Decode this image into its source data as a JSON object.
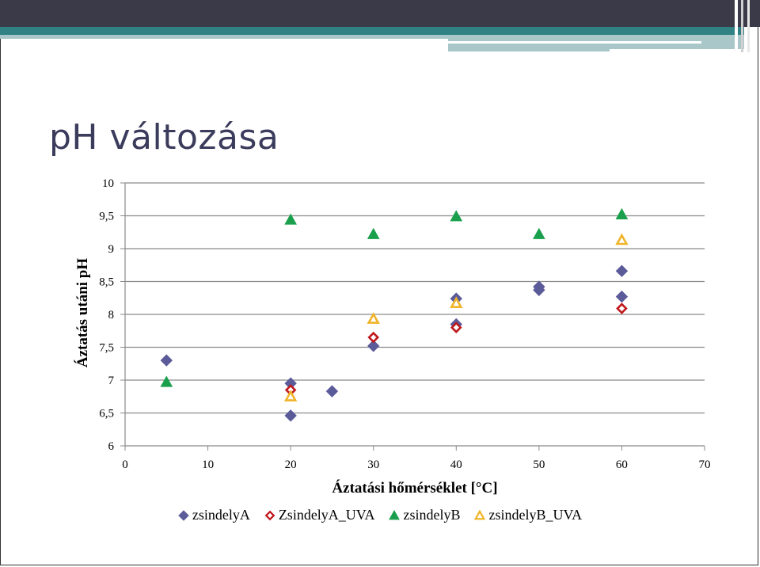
{
  "slide": {
    "title": "pH változása"
  },
  "colors": {
    "banner_dark": "#3a3a48",
    "banner_teal": "#2f8184",
    "banner_light": "#a9c6c8",
    "zsindelyA": "#5b5b9a",
    "ZsindelyA_UVA": "#c0181c",
    "zsindelyB": "#1aa04c",
    "zsindelyB_UVA": "#f0b429"
  },
  "chart_data": {
    "type": "scatter",
    "xlabel": "Áztatási hőmérséklet [°C]",
    "ylabel": "Áztatás utáni pH",
    "xlim": [
      0,
      70
    ],
    "ylim": [
      6,
      10
    ],
    "x_ticks": [
      "0",
      "10",
      "20",
      "30",
      "40",
      "50",
      "60",
      "70"
    ],
    "y_ticks": [
      "6",
      "6,5",
      "7",
      "7,5",
      "8",
      "8,5",
      "9",
      "9,5",
      "10"
    ],
    "grid": "horizontal",
    "legend_position": "bottom",
    "series": [
      {
        "name": "zsindelyA",
        "marker": "diamond-filled",
        "color": "#5b5b9a",
        "points": [
          [
            5,
            7.3
          ],
          [
            20,
            6.95
          ],
          [
            20,
            6.46
          ],
          [
            25,
            6.83
          ],
          [
            30,
            7.52
          ],
          [
            40,
            8.24
          ],
          [
            40,
            7.85
          ],
          [
            50,
            8.42
          ],
          [
            50,
            8.37
          ],
          [
            60,
            8.66
          ],
          [
            60,
            8.27
          ]
        ]
      },
      {
        "name": "ZsindelyA_UVA",
        "marker": "diamond-open",
        "color": "#c0181c",
        "points": [
          [
            20,
            6.85
          ],
          [
            30,
            7.65
          ],
          [
            40,
            7.8
          ],
          [
            60,
            8.09
          ]
        ]
      },
      {
        "name": "zsindelyB",
        "marker": "triangle-filled",
        "color": "#1aa04c",
        "points": [
          [
            5,
            6.97
          ],
          [
            20,
            9.44
          ],
          [
            30,
            9.22
          ],
          [
            40,
            9.49
          ],
          [
            50,
            9.22
          ],
          [
            60,
            9.52
          ]
        ]
      },
      {
        "name": "zsindelyB_UVA",
        "marker": "triangle-open",
        "color": "#f0b429",
        "points": [
          [
            20,
            6.75
          ],
          [
            30,
            7.93
          ],
          [
            40,
            8.17
          ],
          [
            60,
            9.13
          ]
        ]
      }
    ]
  }
}
